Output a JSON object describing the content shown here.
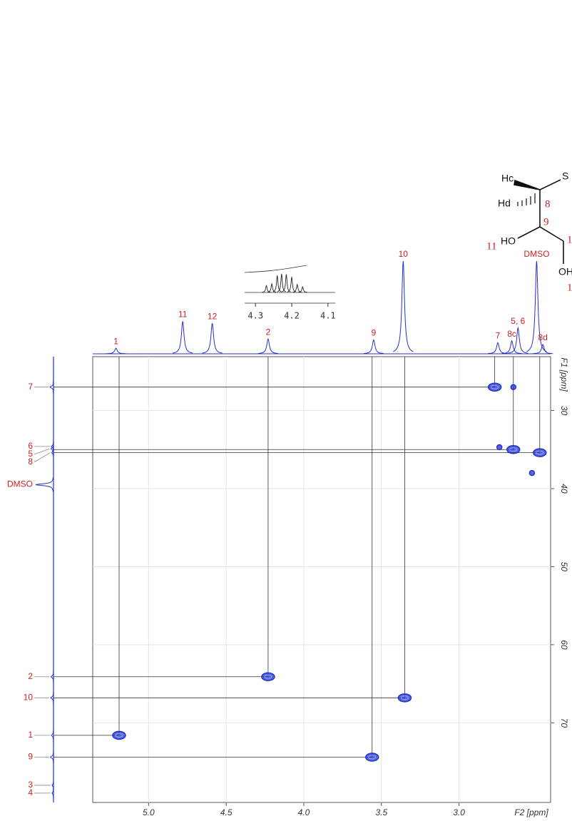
{
  "chart_data": {
    "type": "hsqc",
    "x_label": "F2 [ppm]",
    "y_label": "F1 [ppm]",
    "xlim": [
      5.36,
      2.41
    ],
    "ylim": [
      23.1,
      80.2
    ],
    "xticks": [
      {
        "value": 5,
        "label": "5.0"
      },
      4.5,
      {
        "value": 4,
        "label": "4.0"
      },
      3.5,
      {
        "value": 3,
        "label": "3.0"
      }
    ],
    "yticks": [
      30,
      40,
      50,
      60,
      70
    ],
    "grid": true,
    "color": "#2233cc",
    "label_color": "#cc2222",
    "proton_peaks": [
      {
        "label": "1",
        "ppm": 5.21,
        "intensity": 6
      },
      {
        "label": "11",
        "ppm": 4.78,
        "intensity": 35
      },
      {
        "label": "12",
        "ppm": 4.59,
        "intensity": 33
      },
      {
        "label": "2",
        "ppm": 4.23,
        "intensity": 16
      },
      {
        "label": "9",
        "ppm": 3.55,
        "intensity": 15
      },
      {
        "label": "10",
        "ppm": 3.36,
        "intensity": 100
      },
      {
        "label": "7",
        "ppm": 2.75,
        "intensity": 12
      },
      {
        "label": "8c",
        "ppm": 2.66,
        "intensity": 14
      },
      {
        "label": "5, 6",
        "ppm": 2.62,
        "intensity": 28
      },
      {
        "label": "DMSO",
        "ppm": 2.5,
        "intensity": 100
      },
      {
        "label": "8d",
        "ppm": 2.46,
        "intensity": 10
      }
    ],
    "carbon_peaks": [
      {
        "label": "7",
        "ppm": 27.0,
        "intensity": 20
      },
      {
        "label": "6",
        "ppm": 34.6,
        "intensity": 12
      },
      {
        "label": "5",
        "ppm": 34.9,
        "intensity": 14
      },
      {
        "label": "8",
        "ppm": 35.4,
        "intensity": 10
      },
      {
        "label": "DMSO",
        "ppm": 39.5,
        "intensity": 100
      },
      {
        "label": "2",
        "ppm": 64.1,
        "intensity": 14
      },
      {
        "label": "10",
        "ppm": 66.8,
        "intensity": 16
      },
      {
        "label": "1",
        "ppm": 71.6,
        "intensity": 12
      },
      {
        "label": "9",
        "ppm": 74.4,
        "intensity": 18
      },
      {
        "label": "3",
        "ppm": 78.0,
        "intensity": 8
      },
      {
        "label": "4",
        "ppm": 79.0,
        "intensity": 8
      }
    ],
    "cross_peaks": [
      {
        "x": 5.19,
        "y": 71.6,
        "lines": true
      },
      {
        "x": 4.23,
        "y": 64.1,
        "lines": true
      },
      {
        "x": 3.35,
        "y": 66.8,
        "lines": true
      },
      {
        "x": 3.56,
        "y": 74.4,
        "lines": true
      },
      {
        "x": 2.77,
        "y": 27.0,
        "lines": true
      },
      {
        "x": 2.65,
        "y": 27.0,
        "lines": false
      },
      {
        "x": 2.74,
        "y": 34.7,
        "lines": false
      },
      {
        "x": 2.65,
        "y": 35.0,
        "lines": true
      },
      {
        "x": 2.48,
        "y": 35.4,
        "lines": true
      },
      {
        "x": 2.53,
        "y": 38.0,
        "lines": false
      }
    ],
    "inset": {
      "xlim": [
        4.33,
        4.08
      ],
      "xticks": [
        4.3,
        4.2,
        4.1
      ],
      "peaks": [
        {
          "ppm": 4.27,
          "intensity": 30
        },
        {
          "ppm": 4.255,
          "intensity": 38
        },
        {
          "ppm": 4.24,
          "intensity": 75
        },
        {
          "ppm": 4.228,
          "intensity": 82
        },
        {
          "ppm": 4.215,
          "intensity": 80
        },
        {
          "ppm": 4.2,
          "intensity": 68
        },
        {
          "ppm": 4.185,
          "intensity": 35
        },
        {
          "ppm": 4.17,
          "intensity": 25
        }
      ]
    }
  },
  "structure": {
    "labels": [
      "Hc",
      "S",
      "Hd",
      "8",
      "9",
      "HO",
      "11",
      "OH",
      "1",
      "1"
    ]
  }
}
